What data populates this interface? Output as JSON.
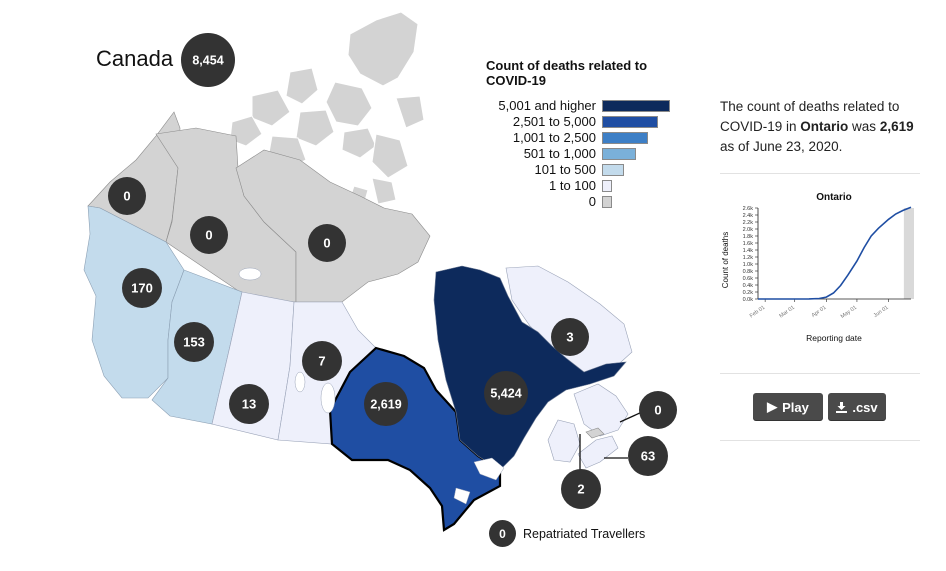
{
  "country": {
    "name": "Canada",
    "total": "8,454"
  },
  "colors": {
    "bin6": "#0d2a5c",
    "bin5": "#1f4ea3",
    "bin4": "#3d7fc6",
    "bin3": "#7ab0d9",
    "bin2": "#c3dbec",
    "bin1": "#eef0fb",
    "bin0": "#d3d3d3",
    "bubble": "#333333"
  },
  "legend": {
    "title": "Count of deaths related to COVID-19",
    "items": [
      {
        "label": "5,001 and higher",
        "color": "#0d2a5c"
      },
      {
        "label": "2,501 to 5,000",
        "color": "#1f4ea3"
      },
      {
        "label": "1,001 to 2,500",
        "color": "#3d7fc6"
      },
      {
        "label": "501 to 1,000",
        "color": "#7ab0d9"
      },
      {
        "label": "101 to 500",
        "color": "#c3dbec"
      },
      {
        "label": "1 to 100",
        "color": "#eef0fb"
      },
      {
        "label": "0",
        "color": "#d3d3d3"
      }
    ]
  },
  "regions": [
    {
      "name": "Yukon",
      "value": "0",
      "color": "#d3d3d3"
    },
    {
      "name": "Northwest Territories",
      "value": "0",
      "color": "#d3d3d3"
    },
    {
      "name": "Nunavut",
      "value": "0",
      "color": "#d3d3d3"
    },
    {
      "name": "British Columbia",
      "value": "170",
      "color": "#c3dbec"
    },
    {
      "name": "Alberta",
      "value": "153",
      "color": "#c3dbec"
    },
    {
      "name": "Saskatchewan",
      "value": "13",
      "color": "#eef0fb"
    },
    {
      "name": "Manitoba",
      "value": "7",
      "color": "#eef0fb"
    },
    {
      "name": "Ontario",
      "value": "2,619",
      "color": "#1f4ea3",
      "selected": true
    },
    {
      "name": "Quebec",
      "value": "5,424",
      "color": "#0d2a5c"
    },
    {
      "name": "Newfoundland and Labrador",
      "value": "3",
      "color": "#eef0fb"
    },
    {
      "name": "Prince Edward Island",
      "value": "0",
      "color": "#d3d3d3"
    },
    {
      "name": "Nova Scotia",
      "value": "63",
      "color": "#eef0fb"
    },
    {
      "name": "New Brunswick",
      "value": "2",
      "color": "#eef0fb"
    }
  ],
  "repatriated": {
    "value": "0",
    "label": "Repatriated Travellers"
  },
  "summary": {
    "before": "The count of deaths related to COVID-19 in ",
    "province": "Ontario",
    "middle": " was ",
    "count": "2,619",
    "after": " as of June 23, 2020."
  },
  "chart_data": {
    "type": "line",
    "title": "Ontario",
    "xlabel": "Reporting date",
    "ylabel": "Count of deaths",
    "x_ticks": [
      "Feb 01",
      "Mar 01",
      "Apr 01",
      "May 01",
      "Jun 01"
    ],
    "y_ticks": [
      "0.0k",
      "0.2k",
      "0.4k",
      "0.6k",
      "0.8k",
      "1.0k",
      "1.2k",
      "1.4k",
      "1.6k",
      "1.8k",
      "2.0k",
      "2.2k",
      "2.4k",
      "2.6k"
    ],
    "ylim": [
      0,
      2600
    ],
    "x": [
      "Jan 25",
      "Feb 01",
      "Feb 15",
      "Mar 01",
      "Mar 15",
      "Mar 25",
      "Apr 01",
      "Apr 08",
      "Apr 15",
      "Apr 22",
      "May 01",
      "May 08",
      "May 15",
      "May 22",
      "Jun 01",
      "Jun 08",
      "Jun 15",
      "Jun 23"
    ],
    "values": [
      0,
      0,
      0,
      0,
      2,
      15,
      53,
      170,
      385,
      680,
      1082,
      1470,
      1800,
      2021,
      2276,
      2430,
      2530,
      2619
    ],
    "highlight_range": [
      "Jun 16",
      "Jun 23"
    ]
  },
  "buttons": {
    "play_label": "Play",
    "csv_label": ".csv",
    "play_icon": "play-icon",
    "csv_icon": "download-icon"
  }
}
